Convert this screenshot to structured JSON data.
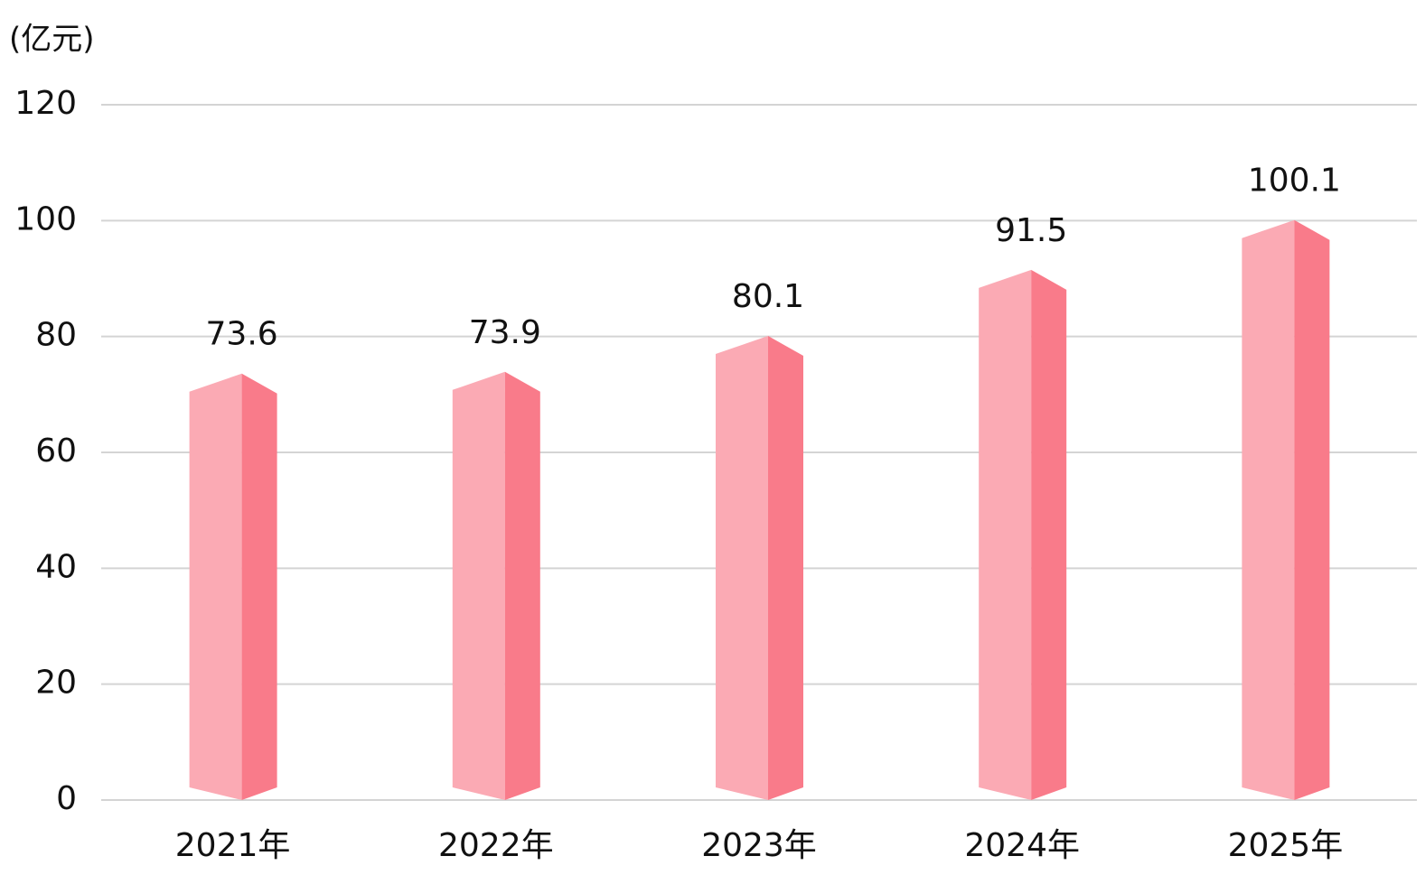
{
  "chart_data": {
    "type": "bar3d",
    "y_axis_label": "(亿元)",
    "categories": [
      "2021年",
      "2022年",
      "2023年",
      "2024年",
      "2025年"
    ],
    "values": [
      73.6,
      73.9,
      80.1,
      91.5,
      100.1
    ],
    "color": "#fbaab4",
    "side_color": "#f97b8a",
    "ylim": [
      0,
      120
    ],
    "yticks": [
      0,
      20,
      40,
      60,
      80,
      100,
      120
    ],
    "grid": true,
    "value_labels_shown": true
  }
}
